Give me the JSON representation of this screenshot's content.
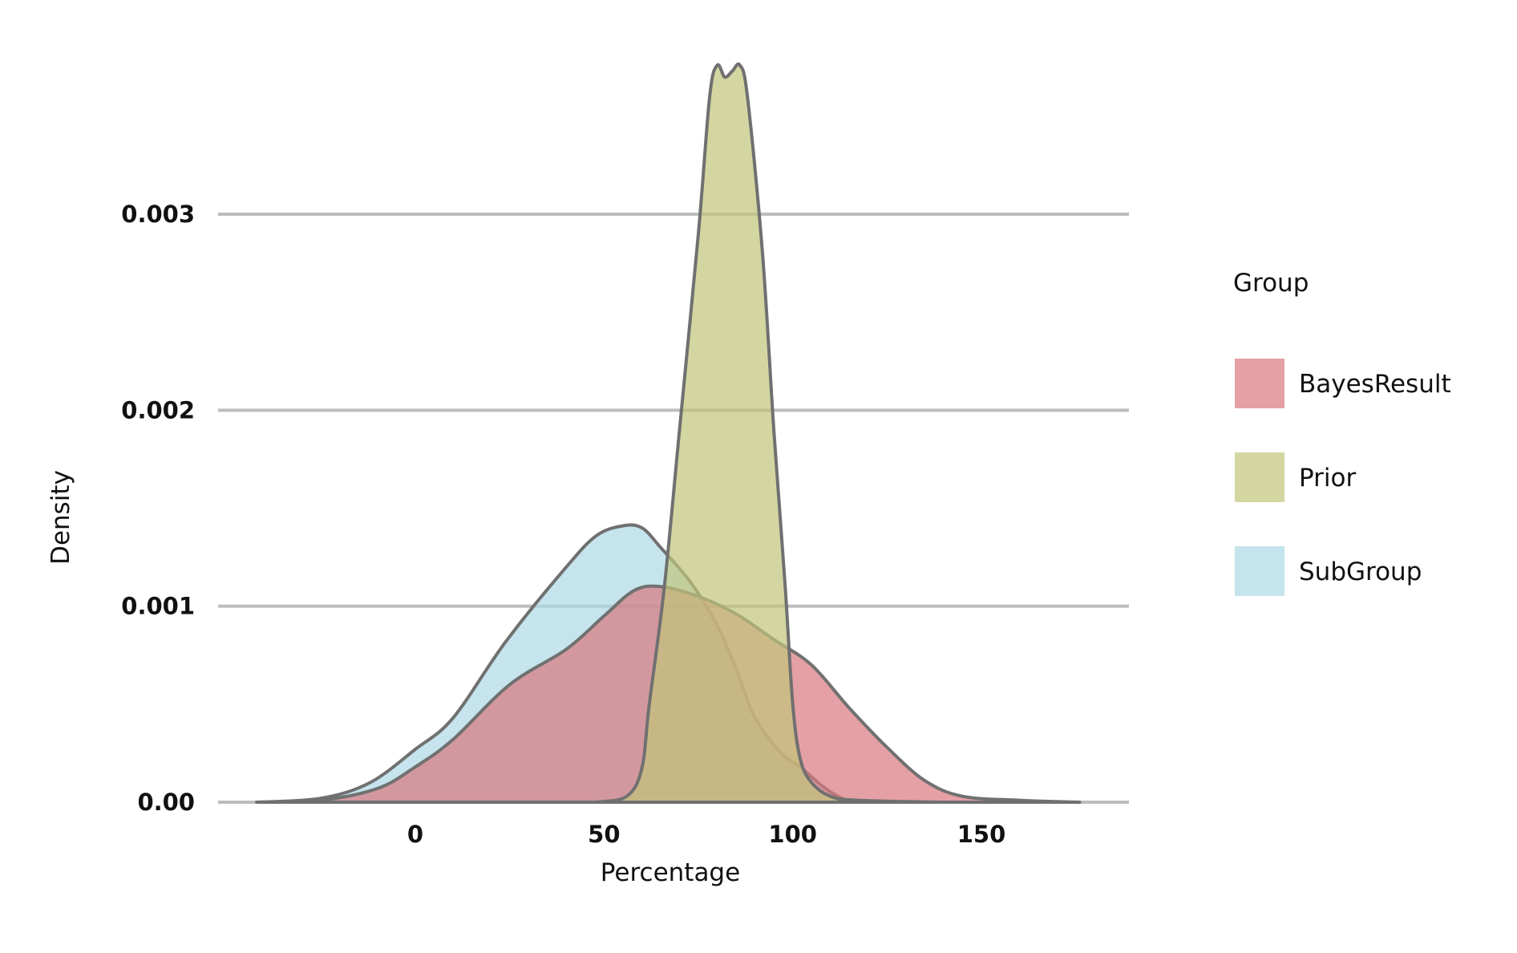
{
  "chart_data": {
    "type": "area",
    "title": "",
    "xlabel": "Percentage",
    "ylabel": "Density",
    "xlim": [
      -50,
      185
    ],
    "ylim": [
      0,
      0.0038
    ],
    "x_ticks": [
      0,
      50,
      100,
      150
    ],
    "x_tick_labels": [
      "0",
      "50",
      "100",
      "150"
    ],
    "y_ticks": [
      0,
      0.001,
      0.002,
      0.003
    ],
    "y_tick_labels": [
      "0.00",
      "0.001",
      "0.002",
      "0.003"
    ],
    "grid": "horizontal",
    "legend": {
      "title": "Group",
      "position": "right"
    },
    "series": [
      {
        "name": "SubGroup",
        "color": "#add8e6",
        "points": [
          [
            -42,
            0
          ],
          [
            -25,
            2e-05
          ],
          [
            -12,
            0.0001
          ],
          [
            0,
            0.00027
          ],
          [
            10,
            0.00043
          ],
          [
            24,
            0.00082
          ],
          [
            40,
            0.0012
          ],
          [
            48,
            0.00136
          ],
          [
            55,
            0.00141
          ],
          [
            60,
            0.0014
          ],
          [
            65,
            0.0013
          ],
          [
            73,
            0.00112
          ],
          [
            80,
            0.0009
          ],
          [
            85,
            0.00068
          ],
          [
            90,
            0.00043
          ],
          [
            97,
            0.00025
          ],
          [
            102,
            0.00018
          ],
          [
            108,
            8e-05
          ],
          [
            113,
            2e-05
          ],
          [
            117,
            0
          ]
        ]
      },
      {
        "name": "BayesResult",
        "color": "#d9787d",
        "points": [
          [
            -42,
            0
          ],
          [
            -25,
            1e-05
          ],
          [
            -10,
            7e-05
          ],
          [
            0,
            0.00018
          ],
          [
            10,
            0.00032
          ],
          [
            25,
            0.0006
          ],
          [
            40,
            0.00078
          ],
          [
            50,
            0.00095
          ],
          [
            58,
            0.00108
          ],
          [
            65,
            0.0011
          ],
          [
            75,
            0.00105
          ],
          [
            85,
            0.00096
          ],
          [
            95,
            0.00083
          ],
          [
            105,
            0.0007
          ],
          [
            115,
            0.00048
          ],
          [
            125,
            0.00028
          ],
          [
            135,
            0.00011
          ],
          [
            145,
            3e-05
          ],
          [
            160,
            1e-05
          ],
          [
            176,
            0
          ]
        ]
      },
      {
        "name": "Prior",
        "color": "#c2c47a",
        "points": [
          [
            48,
            0
          ],
          [
            56,
            3e-05
          ],
          [
            60,
            0.00017
          ],
          [
            62,
            0.0005
          ],
          [
            66,
            0.0011
          ],
          [
            70,
            0.0019
          ],
          [
            75,
            0.0029
          ],
          [
            78,
            0.0036
          ],
          [
            80,
            0.00376
          ],
          [
            82,
            0.0037
          ],
          [
            84,
            0.00373
          ],
          [
            86,
            0.00376
          ],
          [
            88,
            0.0036
          ],
          [
            92,
            0.0028
          ],
          [
            95,
            0.0019
          ],
          [
            98,
            0.0011
          ],
          [
            100,
            0.0005
          ],
          [
            102,
            0.00022
          ],
          [
            105,
            0.0001
          ],
          [
            110,
            3e-05
          ],
          [
            117,
            1e-05
          ],
          [
            140,
            0
          ]
        ]
      }
    ]
  }
}
